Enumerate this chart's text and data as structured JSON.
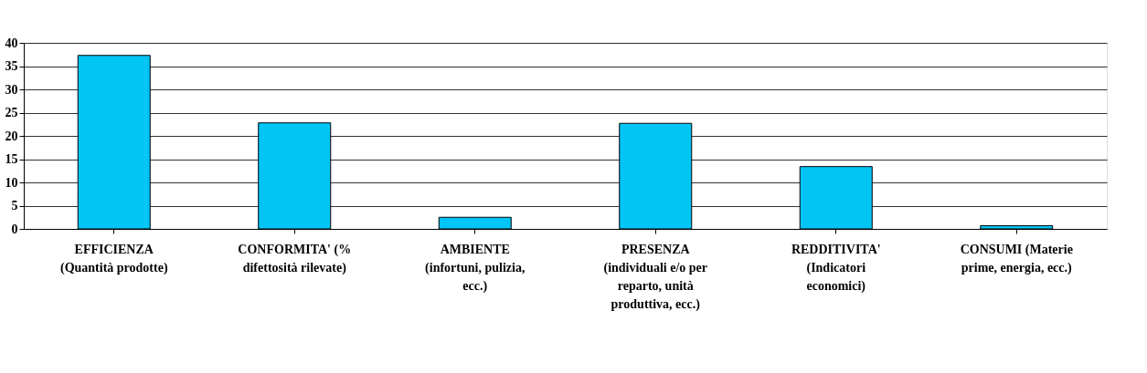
{
  "chart_data": {
    "type": "bar",
    "categories": [
      "EFFICIENZA (Quantità prodotte)",
      "CONFORMITA' (% difettosità rilevate)",
      "AMBIENTE (infortuni, pulizia, ecc.)",
      "PRESENZA (individuali e/o per reparto, unità produttiva, ecc.)",
      "REDDITIVITA' (Indicatori economici)",
      "CONSUMI (Materie prime, energia, ecc.)"
    ],
    "values": [
      37.3,
      22.8,
      2.5,
      22.7,
      13.4,
      0.7
    ],
    "color": "#00c5f5",
    "ylim": [
      0,
      40
    ],
    "yticks": [
      0,
      5,
      10,
      15,
      20,
      25,
      30,
      35,
      40
    ],
    "grid": "y"
  }
}
